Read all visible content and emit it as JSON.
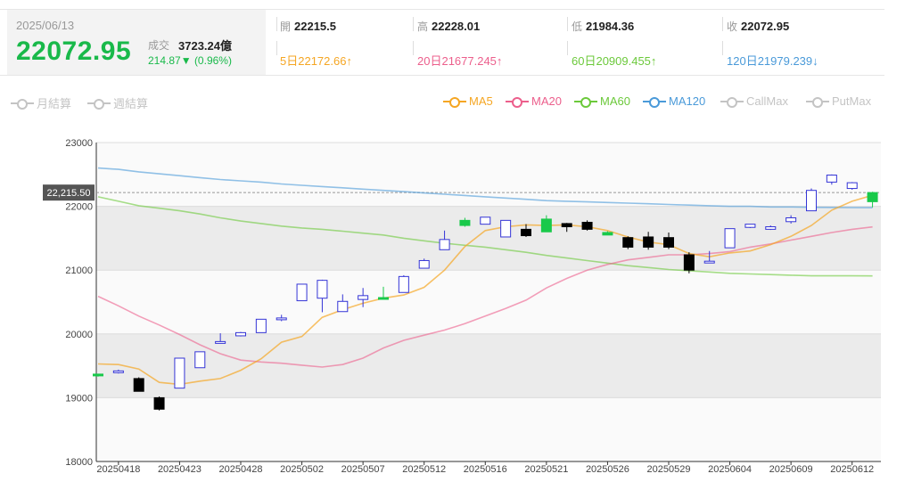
{
  "header": {
    "date": "2025/06/13",
    "price": "22072.95",
    "volume_label": "成交",
    "volume_value": "3723.24億",
    "change": "214.87▼",
    "change_pct": "(0.96%)"
  },
  "ohlc": [
    {
      "label": "開",
      "value": "22215.5"
    },
    {
      "label": "高",
      "value": "22228.01"
    },
    {
      "label": "低",
      "value": "21984.36"
    },
    {
      "label": "收",
      "value": "22072.95"
    }
  ],
  "ma_values": [
    {
      "text": "5日22172.66↑",
      "color": "#f5a623"
    },
    {
      "text": "20日21677.245↑",
      "color": "#ec5f8c"
    },
    {
      "text": "60日20909.455↑",
      "color": "#6cc93b"
    },
    {
      "text": "120日21979.239↓",
      "color": "#4a9ad9"
    }
  ],
  "left_toggles": [
    {
      "label": "月結算",
      "color": "#c4c4c4"
    },
    {
      "label": "週結算",
      "color": "#c4c4c4"
    }
  ],
  "legend": [
    {
      "label": "MA5",
      "color": "#f5a623"
    },
    {
      "label": "MA20",
      "color": "#ec5f8c"
    },
    {
      "label": "MA60",
      "color": "#6cc93b"
    },
    {
      "label": "MA120",
      "color": "#4a9ad9"
    },
    {
      "label": "CallMax",
      "color": "#c4c4c4"
    },
    {
      "label": "PutMax",
      "color": "#c4c4c4"
    }
  ],
  "chart_data": {
    "type": "candlestick",
    "ylim": [
      18000,
      23000
    ],
    "y_ticks": [
      18000,
      19000,
      20000,
      21000,
      22000,
      23000
    ],
    "x_ticks": [
      "20250418",
      "20250423",
      "20250428",
      "20250502",
      "20250507",
      "20250512",
      "20250516",
      "20250521",
      "20250526",
      "20250529",
      "20250604",
      "20250609",
      "20250612"
    ],
    "x_tick_index": [
      1,
      4,
      7,
      10,
      13,
      16,
      19,
      22,
      25,
      28,
      31,
      34,
      37
    ],
    "current_price_label": "22,215.50",
    "current_price_level": 22215.5,
    "candles": [
      {
        "o": 19350,
        "h": 19370,
        "l": 19330,
        "c": 19370
      },
      {
        "o": 19400,
        "h": 19440,
        "l": 19380,
        "c": 19420
      },
      {
        "o": 19300,
        "h": 19320,
        "l": 19100,
        "c": 19100
      },
      {
        "o": 19000,
        "h": 19020,
        "l": 18800,
        "c": 18820
      },
      {
        "o": 19150,
        "h": 19620,
        "l": 19150,
        "c": 19620
      },
      {
        "o": 19470,
        "h": 19720,
        "l": 19470,
        "c": 19720
      },
      {
        "o": 19860,
        "h": 20010,
        "l": 19860,
        "c": 19880
      },
      {
        "o": 19970,
        "h": 20030,
        "l": 19960,
        "c": 20020
      },
      {
        "o": 20020,
        "h": 20230,
        "l": 20020,
        "c": 20230
      },
      {
        "o": 20230,
        "h": 20300,
        "l": 20200,
        "c": 20250
      },
      {
        "o": 20520,
        "h": 20780,
        "l": 20520,
        "c": 20780
      },
      {
        "o": 20560,
        "h": 20850,
        "l": 20340,
        "c": 20840
      },
      {
        "o": 20350,
        "h": 20620,
        "l": 20350,
        "c": 20510
      },
      {
        "o": 20540,
        "h": 20720,
        "l": 20420,
        "c": 20600
      },
      {
        "o": 20570,
        "h": 20740,
        "l": 20540,
        "c": 20550
      },
      {
        "o": 20650,
        "h": 20920,
        "l": 20650,
        "c": 20900
      },
      {
        "o": 21030,
        "h": 21180,
        "l": 21030,
        "c": 21150
      },
      {
        "o": 21320,
        "h": 21620,
        "l": 21320,
        "c": 21480
      },
      {
        "o": 21700,
        "h": 21820,
        "l": 21680,
        "c": 21780
      },
      {
        "o": 21720,
        "h": 21830,
        "l": 21720,
        "c": 21830
      },
      {
        "o": 21520,
        "h": 21780,
        "l": 21520,
        "c": 21780
      },
      {
        "o": 21640,
        "h": 21720,
        "l": 21520,
        "c": 21540
      },
      {
        "o": 21600,
        "h": 21860,
        "l": 21600,
        "c": 21800
      },
      {
        "o": 21730,
        "h": 21740,
        "l": 21600,
        "c": 21680
      },
      {
        "o": 21750,
        "h": 21780,
        "l": 21620,
        "c": 21640
      },
      {
        "o": 21590,
        "h": 21610,
        "l": 21550,
        "c": 21550
      },
      {
        "o": 21510,
        "h": 21530,
        "l": 21330,
        "c": 21360
      },
      {
        "o": 21520,
        "h": 21600,
        "l": 21320,
        "c": 21360
      },
      {
        "o": 21510,
        "h": 21590,
        "l": 21330,
        "c": 21360
      },
      {
        "o": 21240,
        "h": 21280,
        "l": 20950,
        "c": 21000
      },
      {
        "o": 21130,
        "h": 21300,
        "l": 21120,
        "c": 21140
      },
      {
        "o": 21350,
        "h": 21650,
        "l": 21350,
        "c": 21650
      },
      {
        "o": 21670,
        "h": 21720,
        "l": 21660,
        "c": 21720
      },
      {
        "o": 21640,
        "h": 21700,
        "l": 21630,
        "c": 21680
      },
      {
        "o": 21760,
        "h": 21860,
        "l": 21730,
        "c": 21820
      },
      {
        "o": 21930,
        "h": 22280,
        "l": 21930,
        "c": 22250
      },
      {
        "o": 22380,
        "h": 22500,
        "l": 22340,
        "c": 22490
      },
      {
        "o": 22280,
        "h": 22380,
        "l": 22260,
        "c": 22370
      },
      {
        "o": 22215.5,
        "h": 22228.01,
        "l": 21984.36,
        "c": 22072.95
      }
    ],
    "series": [
      {
        "name": "MA5",
        "color": "#f5a623",
        "values": [
          19530,
          19520,
          19450,
          19240,
          19210,
          19260,
          19300,
          19430,
          19610,
          19870,
          19960,
          20260,
          20380,
          20480,
          20560,
          20610,
          20730,
          21000,
          21370,
          21620,
          21680,
          21710,
          21700,
          21710,
          21680,
          21620,
          21520,
          21440,
          21400,
          21260,
          21210,
          21270,
          21300,
          21400,
          21530,
          21700,
          21940,
          22080,
          22172.66
        ]
      },
      {
        "name": "MA20",
        "color": "#ec5f8c",
        "values": [
          20590,
          20440,
          20280,
          20140,
          19990,
          19830,
          19690,
          19590,
          19560,
          19540,
          19510,
          19480,
          19520,
          19620,
          19780,
          19900,
          19980,
          20060,
          20160,
          20280,
          20400,
          20530,
          20720,
          20870,
          21000,
          21090,
          21160,
          21200,
          21240,
          21240,
          21260,
          21290,
          21360,
          21410,
          21470,
          21530,
          21590,
          21640,
          21677.245
        ]
      },
      {
        "name": "MA60",
        "color": "#6cc93b",
        "values": [
          22150,
          22080,
          22010,
          21970,
          21930,
          21880,
          21820,
          21770,
          21730,
          21690,
          21660,
          21640,
          21610,
          21580,
          21550,
          21500,
          21460,
          21420,
          21390,
          21360,
          21320,
          21280,
          21230,
          21190,
          21150,
          21110,
          21070,
          21040,
          21010,
          20990,
          20970,
          20950,
          20940,
          20930,
          20920,
          20910,
          20910,
          20910,
          20909.455
        ]
      },
      {
        "name": "MA120",
        "color": "#4a9ad9",
        "values": [
          22600,
          22580,
          22540,
          22510,
          22480,
          22450,
          22420,
          22400,
          22380,
          22350,
          22330,
          22310,
          22290,
          22270,
          22250,
          22230,
          22210,
          22190,
          22170,
          22150,
          22130,
          22110,
          22090,
          22080,
          22070,
          22060,
          22050,
          22040,
          22030,
          22020,
          22010,
          22000,
          22000,
          21990,
          21990,
          21985,
          21983,
          21981,
          21979.239
        ]
      }
    ]
  }
}
